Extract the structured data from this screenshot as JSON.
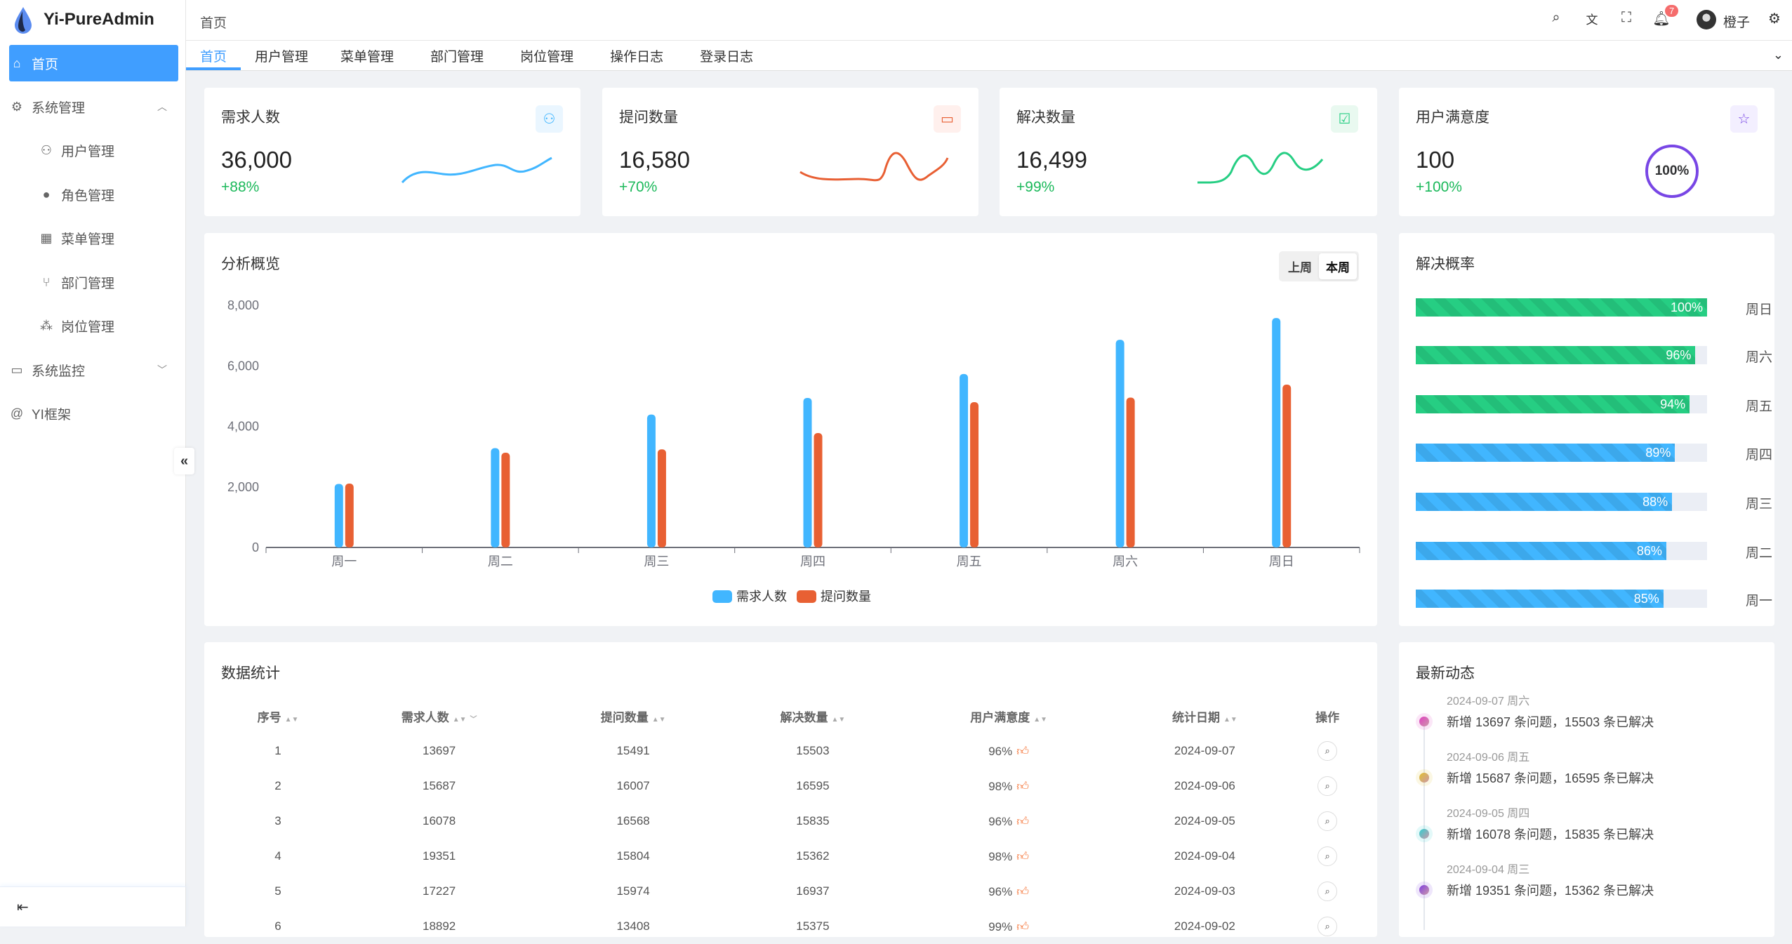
{
  "app": {
    "title": "Yi-PureAdmin"
  },
  "sidebar": {
    "items": [
      {
        "label": "首页",
        "icon": "home-icon",
        "active": true
      },
      {
        "label": "系统管理",
        "icon": "gear-icon"
      },
      {
        "label": "用户管理",
        "icon": "user-icon"
      },
      {
        "label": "角色管理",
        "icon": "role-icon"
      },
      {
        "label": "菜单管理",
        "icon": "grid-icon"
      },
      {
        "label": "部门管理",
        "icon": "branch-icon"
      },
      {
        "label": "岗位管理",
        "icon": "org-icon"
      },
      {
        "label": "系统监控",
        "icon": "monitor-icon"
      },
      {
        "label": "YI框架",
        "icon": "at-icon"
      }
    ]
  },
  "header": {
    "breadcrumb": "首页",
    "notification_count": "7",
    "username": "橙子"
  },
  "tabs": [
    "首页",
    "用户管理",
    "菜单管理",
    "部门管理",
    "岗位管理",
    "操作日志",
    "登录日志"
  ],
  "stats": [
    {
      "title": "需求人数",
      "value": "36,000",
      "change": "+88%",
      "color": "#41b6ff"
    },
    {
      "title": "提问数量",
      "value": "16,580",
      "change": "+70%",
      "color": "#e85f33"
    },
    {
      "title": "解决数量",
      "value": "16,499",
      "change": "+99%",
      "color": "#26ce83"
    },
    {
      "title": "用户满意度",
      "value": "100",
      "change": "+100%",
      "color": "#7846e5",
      "ring": "100%"
    }
  ],
  "overview": {
    "title": "分析概览",
    "toggle": [
      "上周",
      "本周"
    ],
    "selected": "本周"
  },
  "chart_data": {
    "type": "bar",
    "categories": [
      "周一",
      "周二",
      "周三",
      "周四",
      "周五",
      "周六",
      "周日"
    ],
    "series": [
      {
        "name": "需求人数",
        "values": [
          2100,
          3280,
          4390,
          4940,
          5730,
          6860,
          7580
        ],
        "color": "#41b6ff"
      },
      {
        "name": "提问数量",
        "values": [
          2110,
          3130,
          3240,
          3780,
          4800,
          4950,
          5380
        ],
        "color": "#e86033"
      }
    ],
    "yticks": [
      "0",
      "2,000",
      "4,000",
      "6,000",
      "8,000"
    ],
    "ylim": [
      0,
      8000
    ],
    "legend": "bottom"
  },
  "resolve": {
    "title": "解决概率",
    "rows": [
      {
        "day": "周日",
        "pct": 100,
        "label": "100%",
        "color": "#26ce83"
      },
      {
        "day": "周六",
        "pct": 96,
        "label": "96%",
        "color": "#26ce83"
      },
      {
        "day": "周五",
        "pct": 94,
        "label": "94%",
        "color": "#26ce83"
      },
      {
        "day": "周四",
        "pct": 89,
        "label": "89%",
        "color": "#41b6ff"
      },
      {
        "day": "周三",
        "pct": 88,
        "label": "88%",
        "color": "#41b6ff"
      },
      {
        "day": "周二",
        "pct": 86,
        "label": "86%",
        "color": "#41b6ff"
      },
      {
        "day": "周一",
        "pct": 85,
        "label": "85%",
        "color": "#41b6ff"
      }
    ]
  },
  "table": {
    "title": "数据统计",
    "columns": [
      "序号",
      "需求人数",
      "提问数量",
      "解决数量",
      "用户满意度",
      "统计日期",
      "操作"
    ],
    "rows": [
      [
        "1",
        "13697",
        "15491",
        "15503",
        "96%",
        "2024-09-07"
      ],
      [
        "2",
        "15687",
        "16007",
        "16595",
        "98%",
        "2024-09-06"
      ],
      [
        "3",
        "16078",
        "16568",
        "15835",
        "96%",
        "2024-09-05"
      ],
      [
        "4",
        "19351",
        "15804",
        "15362",
        "98%",
        "2024-09-04"
      ],
      [
        "5",
        "17227",
        "15974",
        "16937",
        "96%",
        "2024-09-03"
      ],
      [
        "6",
        "18892",
        "13408",
        "15375",
        "99%",
        "2024-09-02"
      ]
    ]
  },
  "timeline": {
    "title": "最新动态",
    "items": [
      {
        "date": "2024-09-07 周六",
        "text": "新增 13697 条问题，15503 条已解决",
        "color": "#e040c0"
      },
      {
        "date": "2024-09-06 周五",
        "text": "新增 15687 条问题，16595 条已解决",
        "color": "#e0c030"
      },
      {
        "date": "2024-09-05 周四",
        "text": "新增 16078 条问题，15835 条已解决",
        "color": "#30d0d0"
      },
      {
        "date": "2024-09-04 周三",
        "text": "新增 19351 条问题，15362 条已解决",
        "color": "#8040e0"
      }
    ]
  }
}
